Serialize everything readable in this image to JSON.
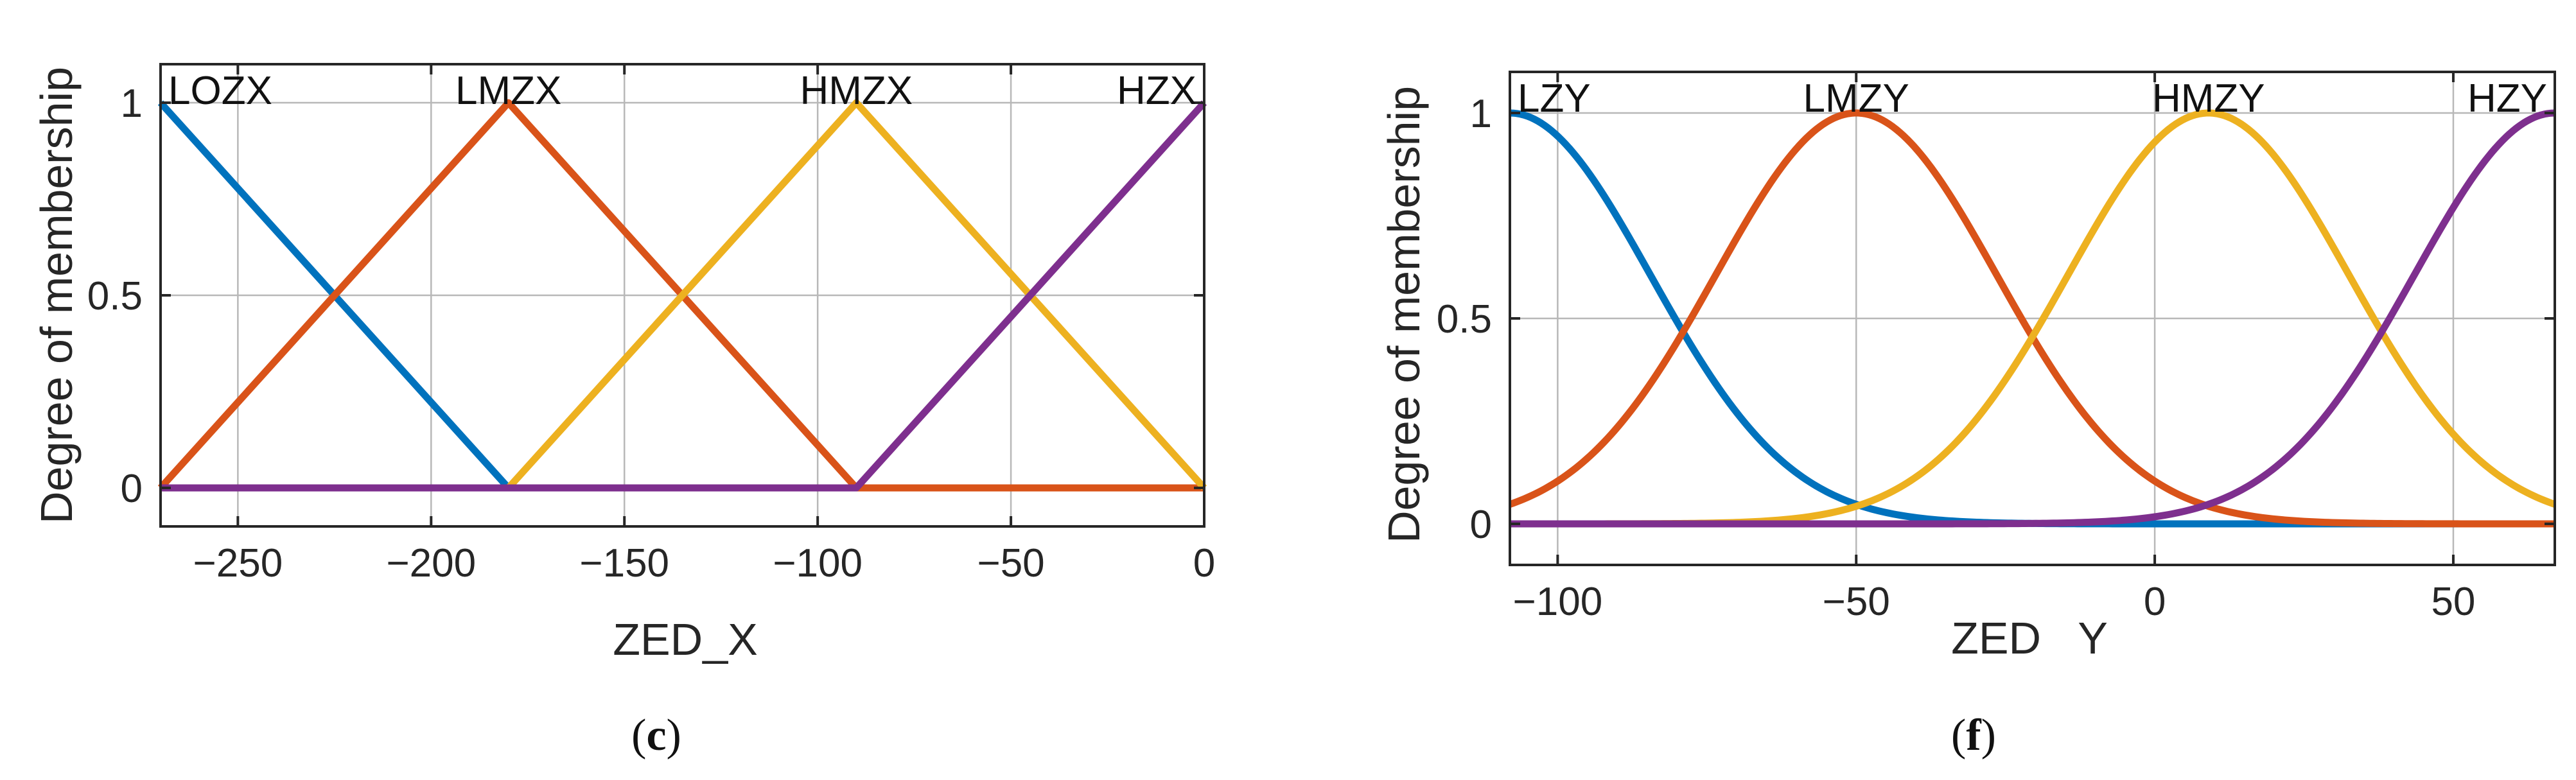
{
  "chart_data": [
    {
      "type": "line",
      "panel_label": "c",
      "title": "",
      "xlabel": "ZED_X",
      "ylabel": "Degree of membership",
      "xlim": [
        -270,
        0
      ],
      "ylim": [
        -0.1,
        1.1
      ],
      "grid": true,
      "xticks": [
        -250,
        -200,
        -150,
        -100,
        -50,
        0
      ],
      "xtick_labels": [
        "−250",
        "−200",
        "−150",
        "−100",
        "−50",
        "0"
      ],
      "yticks": [
        0,
        0.5,
        1
      ],
      "ytick_labels": [
        "0",
        "0.5",
        "1"
      ],
      "x": [
        -270,
        -180,
        -90,
        0
      ],
      "series": [
        {
          "name": "LOZX",
          "values": [
            1,
            0,
            0,
            0
          ],
          "color": "#0072BD",
          "label_x": -260
        },
        {
          "name": "LMZX",
          "values": [
            0,
            1,
            0,
            0
          ],
          "color": "#D95319",
          "label_x": -180
        },
        {
          "name": "HMZX",
          "values": [
            0,
            0,
            1,
            0
          ],
          "color": "#EDB120",
          "label_x": -90
        },
        {
          "name": "HZX",
          "values": [
            0,
            0,
            0,
            1
          ],
          "color": "#7E2F8E",
          "label_x": -5
        }
      ]
    },
    {
      "type": "line",
      "panel_label": "f",
      "title": "",
      "xlabel": "ZED   Y",
      "ylabel": "Degree of membership",
      "xlim": [
        -108,
        67
      ],
      "ylim": [
        -0.1,
        1.1
      ],
      "grid": true,
      "xticks": [
        -100,
        -50,
        0,
        50
      ],
      "xtick_labels": [
        "−100",
        "−50",
        "0",
        "50"
      ],
      "yticks": [
        0,
        0.5,
        1
      ],
      "ytick_labels": [
        "0",
        "0.5",
        "1"
      ],
      "curve": "gaussian",
      "sigma": 23.5,
      "series": [
        {
          "name": "LZY",
          "center": -108,
          "color": "#0072BD",
          "label_x": -100
        },
        {
          "name": "LMZY",
          "center": -50,
          "color": "#D95319",
          "label_x": -50
        },
        {
          "name": "HMZY",
          "center": 9,
          "color": "#EDB120",
          "label_x": 9
        },
        {
          "name": "HZY",
          "center": 67,
          "color": "#7E2F8E",
          "label_x": 58
        }
      ]
    }
  ]
}
